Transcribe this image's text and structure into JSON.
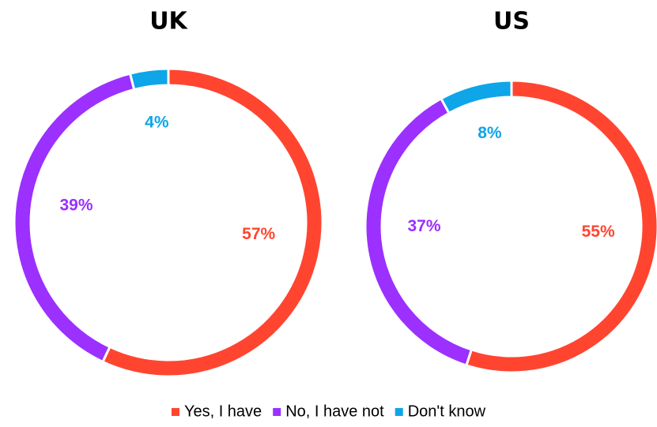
{
  "chart_data": [
    {
      "type": "pie",
      "title": "UK",
      "values": [
        57,
        39,
        4
      ],
      "value_labels": [
        "57%",
        "39%",
        "4%"
      ]
    },
    {
      "type": "pie",
      "title": "US",
      "values": [
        55,
        37,
        8
      ],
      "value_labels": [
        "55%",
        "37%",
        "8%"
      ]
    }
  ],
  "legend": {
    "categories": [
      "Yes, I have",
      "No, I have not",
      "Don't know"
    ],
    "colors": [
      "#ff4530",
      "#9b30ff",
      "#0ea5e9"
    ]
  }
}
